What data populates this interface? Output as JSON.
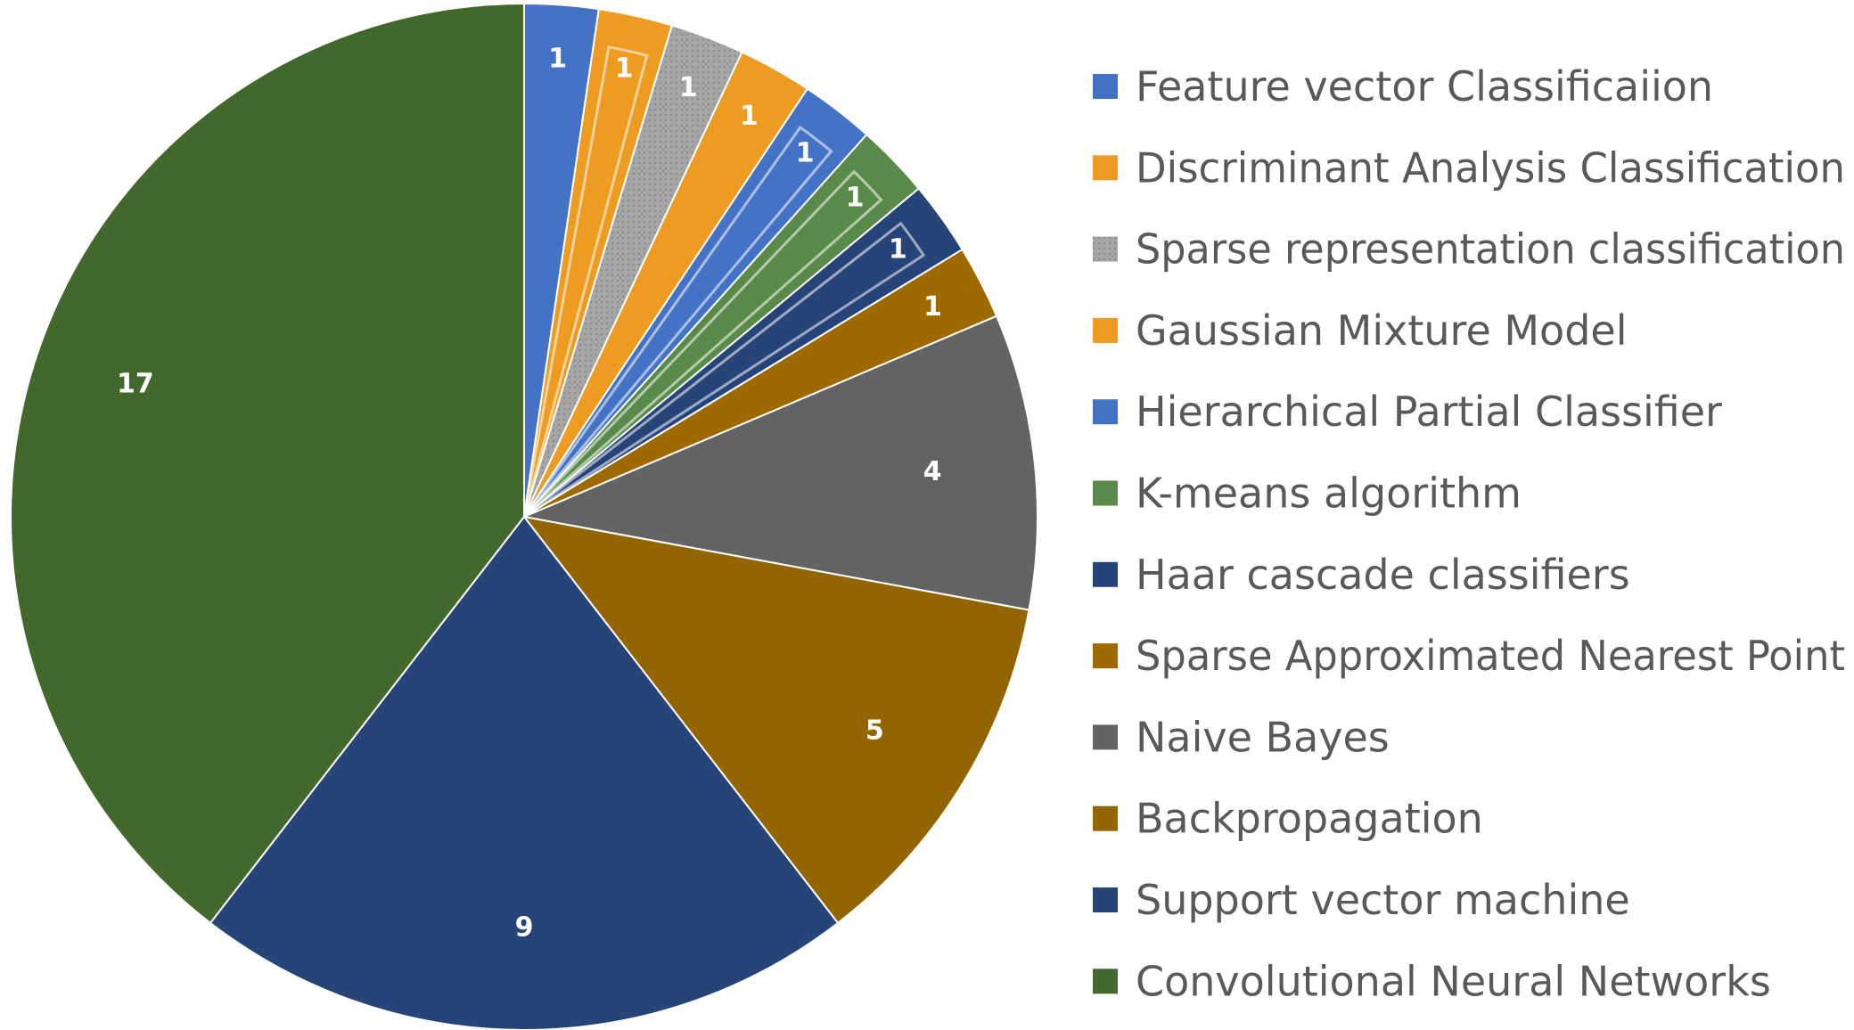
{
  "chart_data": {
    "type": "pie",
    "title": "",
    "start_angle_deg": 0,
    "direction": "clockwise",
    "legend_position": "right",
    "slices": [
      {
        "label": "Feature vector Classificaiion",
        "value": 1,
        "color": "#4472C4",
        "style": "solid"
      },
      {
        "label": "Discriminant Analysis Classification",
        "value": 1,
        "color": "#ED9B21",
        "style": "nested"
      },
      {
        "label": "Sparse representation classification",
        "value": 1,
        "color": "#A5A5A5",
        "style": "dotted"
      },
      {
        "label": "Gaussian Mixture Model",
        "value": 1,
        "color": "#ED9B21",
        "style": "solid"
      },
      {
        "label": "Hierarchical Partial Classifier",
        "value": 1,
        "color": "#4472C4",
        "style": "nested"
      },
      {
        "label": "K-means algorithm",
        "value": 1,
        "color": "#5A8A4A",
        "style": "nested"
      },
      {
        "label": "Haar cascade classifiers",
        "value": 1,
        "color": "#264478",
        "style": "nested"
      },
      {
        "label": "Sparse Approximated Nearest Point",
        "value": 1,
        "color": "#9E6A00",
        "style": "solid"
      },
      {
        "label": "Naive Bayes",
        "value": 4,
        "color": "#636363",
        "style": "solid"
      },
      {
        "label": "Backpropagation",
        "value": 5,
        "color": "#936500",
        "style": "solid"
      },
      {
        "label": "Support vector machine",
        "value": 9,
        "color": "#264478",
        "style": "solid"
      },
      {
        "label": "Convolutional Neural Networks",
        "value": 17,
        "color": "#43682B",
        "style": "solid"
      }
    ]
  }
}
